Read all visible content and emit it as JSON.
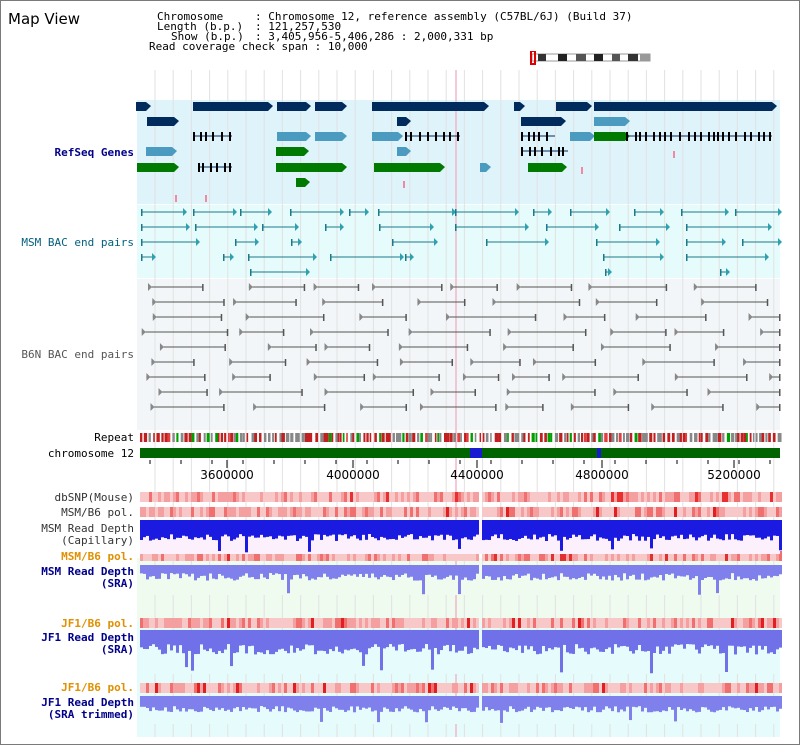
{
  "title": "Map View",
  "info": {
    "chromosome_key": "Chromosome",
    "chromosome_value": "Chromosome 12, reference assembly (C57BL/6J) (Build 37)",
    "length_key": "Length (b.p.)",
    "length_value": "121,257,530",
    "show_key": "Show (b.p.)",
    "show_value": "3,405,956-5,406,286 : 2,000,331 bp",
    "coverage_key": "Read coverage check span",
    "coverage_value": "10,000"
  },
  "tracks": {
    "refseq": "RefSeq Genes",
    "msm_bac": "MSM BAC end pairs",
    "b6n_bac": "B6N BAC end pairs",
    "repeat": "Repeat",
    "chromosome": "chromosome 12",
    "dbsnp": "dbSNP(Mouse)",
    "msm_b6_pol_1": "MSM/B6 pol.",
    "msm_depth_cap_1": "MSM Read Depth",
    "msm_depth_cap_2": "(Capillary)",
    "msm_b6_pol_2": "MSM/B6 pol.",
    "msm_depth_sra_1": "MSM Read Depth",
    "msm_depth_sra_2": "(SRA)",
    "jf1_b6_pol_1": "JF1/B6 pol.",
    "jf1_depth_sra_1": "JF1 Read Depth",
    "jf1_depth_sra_2": "(SRA)",
    "jf1_b6_pol_2": "JF1/B6 pol.",
    "jf1_depth_trim_1": "JF1 Read Depth",
    "jf1_depth_trim_2": "(SRA trimmed)"
  },
  "axis_ticks": [
    "3600000",
    "4000000",
    "4400000",
    "4800000",
    "5200000"
  ],
  "colors": {
    "refseq_bg": "#dff3fb",
    "msm_bac_bg": "#e6fbfb",
    "b6n_bac_bg": "#f3f6f8",
    "navy": "#002b5c",
    "steel": "#4a9bbf",
    "green": "#007a00",
    "teal_line": "#1a7a8a",
    "gray_line": "#555555",
    "chrom_green": "#006400",
    "label_navy": "#00008b",
    "label_teal": "#005f7f",
    "label_orange": "#e09000",
    "depth_blue": "#1414e0",
    "depth_light": "#7a7ae8"
  }
}
